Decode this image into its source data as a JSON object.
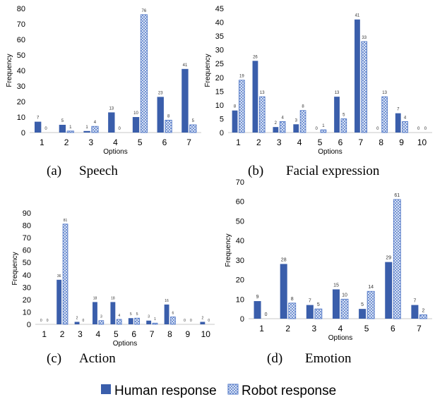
{
  "legend": {
    "human": "Human response",
    "robot": "Robot response"
  },
  "colors": {
    "human": "#3a5eab",
    "robot_stroke": "#4a72c4",
    "robot_fill": "#e9f0fb",
    "axis": "#c9c9c9"
  },
  "chart_data": [
    {
      "type": "bar",
      "caption_letter": "(a)",
      "caption_title": "Speech",
      "xlabel": "Options",
      "ylabel": "Frequency",
      "ylim": [
        0,
        80
      ],
      "ystep": 10,
      "categories": [
        "1",
        "2",
        "3",
        "4",
        "5",
        "6",
        "7"
      ],
      "series": [
        {
          "name": "Human response",
          "values": [
            7,
            5,
            1,
            13,
            10,
            23,
            41
          ]
        },
        {
          "name": "Robot response",
          "values": [
            0,
            1,
            4,
            0,
            76,
            8,
            5
          ]
        }
      ]
    },
    {
      "type": "bar",
      "caption_letter": "(b)",
      "caption_title": "Facial expression",
      "xlabel": "Options",
      "ylabel": "Frequency",
      "ylim": [
        0,
        45
      ],
      "ystep": 5,
      "categories": [
        "1",
        "2",
        "3",
        "4",
        "5",
        "6",
        "7",
        "8",
        "9",
        "10"
      ],
      "series": [
        {
          "name": "Human response",
          "values": [
            8,
            26,
            2,
            3,
            0,
            13,
            41,
            0,
            7,
            0
          ]
        },
        {
          "name": "Robot response",
          "values": [
            19,
            13,
            4,
            8,
            1,
            5,
            33,
            13,
            4,
            0
          ]
        }
      ]
    },
    {
      "type": "bar",
      "caption_letter": "(c)",
      "caption_title": "Action",
      "xlabel": "Options",
      "ylabel": "Frequency",
      "ylim": [
        0,
        90
      ],
      "ystep": 10,
      "categories": [
        "1",
        "2",
        "3",
        "4",
        "5",
        "6",
        "7",
        "8",
        "9",
        "10"
      ],
      "series": [
        {
          "name": "Human response",
          "values": [
            0,
            36,
            2,
            18,
            18,
            5,
            3,
            16,
            0,
            2
          ]
        },
        {
          "name": "Robot response",
          "values": [
            0,
            81,
            0,
            3,
            4,
            5,
            1,
            6,
            0,
            0
          ]
        }
      ]
    },
    {
      "type": "bar",
      "caption_letter": "(d)",
      "caption_title": "Emotion",
      "xlabel": "Options",
      "ylabel": "Frequency",
      "ylim": [
        0,
        70
      ],
      "ystep": 10,
      "categories": [
        "1",
        "2",
        "3",
        "4",
        "5",
        "6",
        "7"
      ],
      "series": [
        {
          "name": "Human response",
          "values": [
            9,
            28,
            7,
            15,
            5,
            29,
            7
          ]
        },
        {
          "name": "Robot response",
          "values": [
            0,
            8,
            5,
            10,
            14,
            61,
            2
          ]
        }
      ]
    }
  ]
}
